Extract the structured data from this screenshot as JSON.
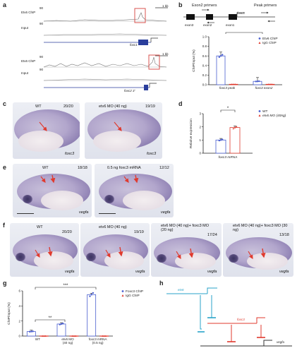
{
  "panels": {
    "a": {
      "label": "a",
      "scale_1": "1 kb",
      "scale_2": "1 kb",
      "track_etv6_1": "Etv6 ChIP",
      "track_input_1": "Input",
      "track_etv6_2": "Etv6 ChIP",
      "track_input_2": "Input",
      "max_1": "90",
      "max_2": "90",
      "max_3": "90",
      "max_4": "90",
      "gene_1": "foxc1",
      "gene_2": "foxc2 3'"
    },
    "b": {
      "label": "b",
      "exon2_primers": "Exon2 primers",
      "peak_primers": "Peak primers",
      "gene": "foxc3",
      "exon3": "exon3",
      "exon2": "exon2",
      "exon1": "exon1",
      "sig": "*"
    },
    "c": {
      "label": "c",
      "wt": "WT",
      "mo": "etv6 MO (40 ng)",
      "count_wt": "20/20",
      "count_mo": "19/19",
      "probe_wt": "foxc3",
      "probe_mo": "foxc3"
    },
    "d": {
      "label": "d",
      "sig": "*"
    },
    "e": {
      "label": "e",
      "wt": "WT",
      "mrna": "0.5 ng foxc3 mRNA",
      "count_wt": "18/18",
      "count_mrna": "12/12",
      "probe_wt": "vegfa",
      "probe_mrna": "vegfa"
    },
    "f": {
      "label": "f",
      "wt": "WT",
      "mo": "etv6 MO (40 ng)",
      "combo1": "etv6 MO (40 ng)+ foxc3 MO (20 ng)",
      "combo2": "etv6 MO (40 ng)+ foxc3 MO (30 ng)",
      "count_wt": "20/20",
      "count_mo": "19/19",
      "count_c1": "17/24",
      "count_c2": "13/18",
      "probe_1": "vegfa",
      "probe_2": "vegfa",
      "probe_3": "vegfa",
      "probe_4": "vegfa"
    },
    "g": {
      "label": "g",
      "sig1": "**",
      "sig2": "***"
    },
    "h": {
      "label": "h",
      "gene_1": "etv6",
      "gene_2": "foxc3",
      "gene_3": "vegfa"
    }
  },
  "colors": {
    "blue": "#4a5fd0",
    "red": "#e03a2e",
    "teal": "#29a3c9",
    "box": "#d9534f"
  },
  "chart_data": [
    {
      "type": "bar",
      "panel": "b",
      "categories": [
        "foxc3 peak",
        "foxc3 exon2"
      ],
      "series": [
        {
          "name": "Etv6 ChIP",
          "values": [
            0.6,
            0.07
          ]
        },
        {
          "name": "IgG ChIP",
          "values": [
            0.01,
            0.01
          ]
        }
      ],
      "ylabel": "ChIP/Input (%)",
      "ylim": [
        0,
        1.0
      ],
      "yticks": [
        "0.0",
        "0.2",
        "0.4",
        "0.6",
        "0.8",
        "1.0"
      ],
      "legend": "top-right"
    },
    {
      "type": "bar",
      "panel": "d",
      "categories": [
        "foxc3 mRNA"
      ],
      "series": [
        {
          "name": "WT",
          "values": [
            1.0
          ]
        },
        {
          "name": "etv6 MO (40ng)",
          "values": [
            1.95
          ]
        }
      ],
      "xlabel": "foxc3 mRNA",
      "ylabel": "Relative expression",
      "ylim": [
        0,
        3
      ],
      "yticks": [
        "0",
        "1",
        "2",
        "3"
      ],
      "legend": "top-right"
    },
    {
      "type": "bar",
      "panel": "g",
      "categories": [
        "WT",
        "etv6 MO (40 ng)",
        "foxc3 mRNA (0.5 ng)"
      ],
      "series": [
        {
          "name": "Foxc3 ChIP",
          "values": [
            0.6,
            1.6,
            5.5
          ]
        },
        {
          "name": "IgG ChIP",
          "values": [
            0.02,
            0.02,
            0.02
          ]
        }
      ],
      "ylabel": "ChIP/Input (%)",
      "ylim": [
        0,
        6
      ],
      "yticks": [
        "0",
        "2",
        "4",
        "6"
      ],
      "legend": "top-right"
    }
  ]
}
